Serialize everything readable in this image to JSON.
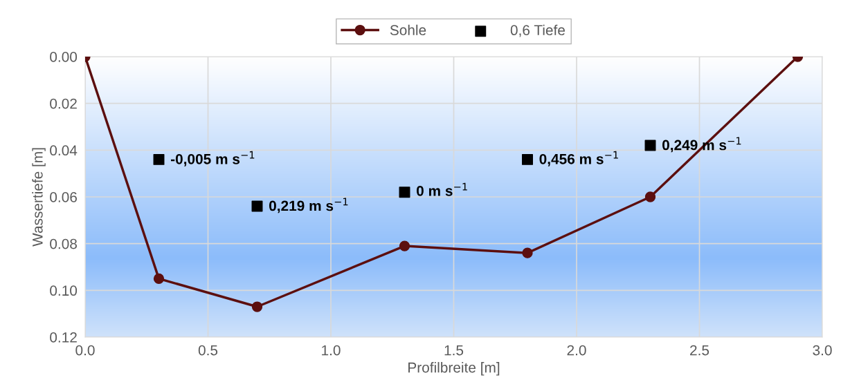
{
  "chart_data": {
    "type": "line",
    "xlabel": "Profilbreite [m]",
    "ylabel": "Wassertiefe [m]",
    "series": [
      {
        "name": "Sohle",
        "color": "#5c0f0f",
        "marker": "circle",
        "line_style": "solid",
        "x": [
          0,
          0.3,
          0.7,
          1.3,
          1.8,
          2.3,
          2.9
        ],
        "values": [
          0,
          0.095,
          0.107,
          0.081,
          0.084,
          0.06,
          0
        ]
      },
      {
        "name": "0,6 Tiefe",
        "type": "scatter",
        "color": "#000000",
        "marker": "square",
        "x": [
          0.3,
          0.7,
          1.3,
          1.8,
          2.3
        ],
        "values": [
          0.044,
          0.064,
          0.058,
          0.044,
          0.038
        ],
        "value_labels": [
          "-0,005 m s$^{−1}$",
          "0,219 m s$^{−1}$",
          "0 m s$^{−1}$",
          "0,456 m s$^{−1}$",
          "0,249 m s$^{−1}$"
        ]
      }
    ],
    "xlim": [
      0,
      3
    ],
    "xticks": [
      {
        "value": 0,
        "label": "0.0"
      },
      {
        "value": 0.5,
        "label": "0.5"
      },
      {
        "value": 1,
        "label": "1.0"
      },
      {
        "value": 1.5,
        "label": "1.5"
      },
      {
        "value": 2,
        "label": "2.0"
      },
      {
        "value": 2.5,
        "label": "2.5"
      },
      {
        "value": 3,
        "label": "3.0"
      }
    ],
    "ylim": [
      0.12,
      0
    ],
    "yticks": [
      {
        "value": 0,
        "label": "0.00"
      },
      {
        "value": 0.02,
        "label": "0.02"
      },
      {
        "value": 0.04,
        "label": "0.04"
      },
      {
        "value": 0.06,
        "label": "0.06"
      },
      {
        "value": 0.08,
        "label": "0.08"
      },
      {
        "value": 0.1,
        "label": "0.10"
      },
      {
        "value": 0.12,
        "label": "0.12"
      }
    ],
    "grid": true,
    "legend": "top"
  }
}
